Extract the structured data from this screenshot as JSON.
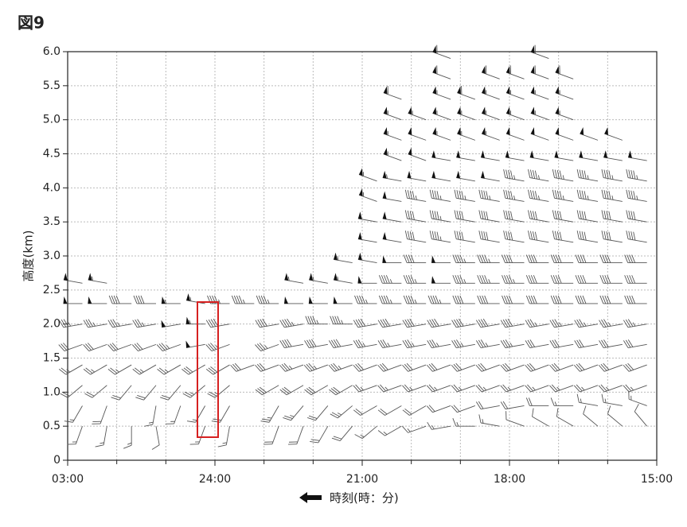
{
  "chart_data": {
    "type": "wind_barb",
    "title": "図9",
    "xlabel": "時刻(時：分)",
    "ylabel": "高度(km)",
    "xlim": [
      27,
      15
    ],
    "ylim": [
      0,
      6
    ],
    "xticks": [
      {
        "value": 27,
        "label": "03:00"
      },
      {
        "value": 24,
        "label": "24:00"
      },
      {
        "value": 21,
        "label": "21:00"
      },
      {
        "value": 18,
        "label": "18:00"
      },
      {
        "value": 15,
        "label": "15:00"
      }
    ],
    "xminorticks": [
      26,
      25,
      23,
      22,
      20,
      19,
      17,
      16
    ],
    "yticks": [
      0,
      0.5,
      {
        "value": 1,
        "label": "1.0"
      },
      1.5,
      {
        "value": 2,
        "label": "2.0"
      },
      2.5,
      {
        "value": 3,
        "label": "3.0"
      },
      3.5,
      {
        "value": 4,
        "label": "4.0"
      },
      4.5,
      {
        "value": 5,
        "label": "5.0"
      },
      5.5,
      {
        "value": 6,
        "label": "6.0"
      }
    ],
    "grid": true,
    "color": "#555555",
    "heights": [
      0.5,
      0.8,
      1.1,
      1.4,
      1.7,
      2.0,
      2.3,
      2.6,
      2.9,
      3.2,
      3.5,
      3.8,
      4.1,
      4.4,
      4.7,
      5.0,
      5.3,
      5.6,
      5.9
    ],
    "series": [
      {
        "x": 26.7,
        "speed": [
          15,
          15,
          20,
          25,
          30,
          35,
          50,
          55,
          null,
          null,
          null,
          null,
          null,
          null,
          null,
          null,
          null,
          null,
          null
        ],
        "direction": [
          200,
          210,
          230,
          240,
          250,
          260,
          270,
          280,
          null,
          null,
          null,
          null,
          null,
          null,
          null,
          null,
          null,
          null,
          null
        ]
      },
      {
        "x": 26.2,
        "speed": [
          15,
          20,
          20,
          25,
          30,
          35,
          50,
          55,
          null,
          null,
          null,
          null,
          null,
          null,
          null,
          null,
          null,
          null,
          null
        ],
        "direction": [
          190,
          200,
          230,
          240,
          250,
          260,
          270,
          280,
          null,
          null,
          null,
          null,
          null,
          null,
          null,
          null,
          null,
          null,
          null
        ]
      },
      {
        "x": 25.7,
        "speed": [
          15,
          null,
          20,
          25,
          30,
          35,
          40,
          null,
          null,
          null,
          null,
          null,
          null,
          null,
          null,
          null,
          null,
          null,
          null
        ],
        "direction": [
          180,
          null,
          220,
          240,
          250,
          260,
          270,
          null,
          null,
          null,
          null,
          null,
          null,
          null,
          null,
          null,
          null,
          null,
          null
        ]
      },
      {
        "x": 25.2,
        "speed": [
          10,
          15,
          20,
          25,
          30,
          35,
          40,
          null,
          null,
          null,
          null,
          null,
          null,
          null,
          null,
          null,
          null,
          null,
          null
        ],
        "direction": [
          170,
          190,
          220,
          240,
          250,
          260,
          270,
          null,
          null,
          null,
          null,
          null,
          null,
          null,
          null,
          null,
          null,
          null,
          null
        ]
      },
      {
        "x": 24.7,
        "speed": [
          null,
          15,
          20,
          25,
          35,
          50,
          55,
          null,
          null,
          null,
          null,
          null,
          null,
          null,
          null,
          null,
          null,
          null,
          null
        ],
        "direction": [
          null,
          200,
          220,
          240,
          250,
          260,
          270,
          null,
          null,
          null,
          null,
          null,
          null,
          null,
          null,
          null,
          null,
          null,
          null
        ]
      },
      {
        "x": 24.2,
        "speed": [
          15,
          15,
          25,
          30,
          50,
          55,
          55,
          null,
          null,
          null,
          null,
          null,
          null,
          null,
          null,
          null,
          null,
          null,
          null
        ],
        "direction": [
          200,
          210,
          230,
          240,
          260,
          270,
          280,
          null,
          null,
          null,
          null,
          null,
          null,
          null,
          null,
          null,
          null,
          null,
          null
        ]
      },
      {
        "x": 23.7,
        "speed": [
          15,
          20,
          25,
          30,
          35,
          40,
          45,
          null,
          null,
          null,
          null,
          null,
          null,
          null,
          null,
          null,
          null,
          null,
          null
        ],
        "direction": [
          190,
          210,
          230,
          240,
          250,
          260,
          270,
          null,
          null,
          null,
          null,
          null,
          null,
          null,
          null,
          null,
          null,
          null,
          null
        ]
      },
      {
        "x": 23.2,
        "speed": [
          null,
          null,
          null,
          30,
          null,
          null,
          45,
          null,
          null,
          null,
          null,
          null,
          null,
          null,
          null,
          null,
          null,
          null,
          null
        ],
        "direction": [
          null,
          null,
          null,
          250,
          null,
          null,
          270,
          null,
          null,
          null,
          null,
          null,
          null,
          null,
          null,
          null,
          null,
          null,
          null
        ]
      },
      {
        "x": 22.7,
        "speed": [
          20,
          25,
          30,
          30,
          35,
          40,
          45,
          null,
          null,
          null,
          null,
          null,
          null,
          null,
          null,
          null,
          null,
          null,
          null
        ],
        "direction": [
          200,
          210,
          240,
          250,
          250,
          260,
          270,
          null,
          null,
          null,
          null,
          null,
          null,
          null,
          null,
          null,
          null,
          null,
          null
        ]
      },
      {
        "x": 22.2,
        "speed": [
          20,
          25,
          30,
          35,
          40,
          45,
          50,
          55,
          null,
          null,
          null,
          null,
          null,
          null,
          null,
          null,
          null,
          null,
          null
        ],
        "direction": [
          200,
          220,
          240,
          250,
          260,
          260,
          270,
          280,
          null,
          null,
          null,
          null,
          null,
          null,
          null,
          null,
          null,
          null,
          null
        ]
      },
      {
        "x": 21.7,
        "speed": [
          20,
          20,
          30,
          35,
          40,
          45,
          50,
          55,
          null,
          null,
          null,
          null,
          null,
          null,
          null,
          null,
          null,
          null,
          null
        ],
        "direction": [
          210,
          220,
          240,
          250,
          260,
          270,
          270,
          280,
          null,
          null,
          null,
          null,
          null,
          null,
          null,
          null,
          null,
          null,
          null
        ]
      },
      {
        "x": 21.2,
        "speed": [
          20,
          25,
          30,
          35,
          40,
          45,
          50,
          55,
          55,
          null,
          null,
          null,
          null,
          null,
          null,
          null,
          null,
          null,
          null
        ],
        "direction": [
          220,
          230,
          240,
          250,
          260,
          270,
          270,
          280,
          280,
          null,
          null,
          null,
          null,
          null,
          null,
          null,
          null,
          null,
          null
        ]
      },
      {
        "x": 20.7,
        "speed": [
          15,
          20,
          25,
          30,
          35,
          40,
          45,
          50,
          50,
          50,
          50,
          55,
          55,
          null,
          null,
          null,
          null,
          null,
          null
        ],
        "direction": [
          230,
          240,
          250,
          250,
          260,
          260,
          270,
          270,
          280,
          280,
          280,
          290,
          290,
          null,
          null,
          null,
          null,
          null,
          null
        ]
      },
      {
        "x": 20.2,
        "speed": [
          15,
          20,
          25,
          30,
          35,
          40,
          45,
          45,
          50,
          50,
          50,
          50,
          55,
          55,
          55,
          55,
          60,
          null,
          null
        ],
        "direction": [
          240,
          240,
          250,
          250,
          260,
          260,
          270,
          270,
          270,
          280,
          280,
          280,
          280,
          290,
          290,
          290,
          290,
          null,
          null
        ]
      },
      {
        "x": 19.7,
        "speed": [
          15,
          20,
          25,
          30,
          35,
          40,
          45,
          45,
          40,
          40,
          40,
          45,
          50,
          50,
          50,
          55,
          null,
          null,
          null
        ],
        "direction": [
          250,
          240,
          250,
          250,
          260,
          260,
          270,
          270,
          270,
          280,
          280,
          280,
          280,
          290,
          290,
          290,
          null,
          null,
          null
        ]
      },
      {
        "x": 19.2,
        "speed": [
          15,
          20,
          25,
          30,
          35,
          40,
          45,
          50,
          50,
          45,
          45,
          45,
          50,
          50,
          55,
          55,
          55,
          60,
          60
        ],
        "direction": [
          260,
          250,
          250,
          250,
          260,
          260,
          270,
          270,
          270,
          280,
          280,
          280,
          280,
          280,
          290,
          290,
          290,
          290,
          290
        ]
      },
      {
        "x": 18.7,
        "speed": [
          15,
          20,
          25,
          30,
          35,
          40,
          40,
          45,
          45,
          40,
          40,
          45,
          50,
          50,
          55,
          55,
          60,
          null,
          null
        ],
        "direction": [
          270,
          250,
          250,
          250,
          260,
          260,
          270,
          270,
          270,
          280,
          280,
          280,
          280,
          280,
          290,
          290,
          290,
          null,
          null
        ]
      },
      {
        "x": 18.2,
        "speed": [
          15,
          20,
          25,
          30,
          35,
          40,
          40,
          45,
          45,
          40,
          40,
          45,
          50,
          50,
          55,
          55,
          55,
          60,
          null
        ],
        "direction": [
          280,
          260,
          250,
          250,
          260,
          260,
          270,
          270,
          270,
          280,
          280,
          280,
          280,
          280,
          290,
          290,
          290,
          290,
          null
        ]
      },
      {
        "x": 17.7,
        "speed": [
          10,
          20,
          25,
          30,
          35,
          40,
          40,
          45,
          40,
          40,
          40,
          45,
          45,
          50,
          50,
          55,
          55,
          60,
          null
        ],
        "direction": [
          290,
          260,
          250,
          250,
          260,
          260,
          270,
          270,
          270,
          280,
          280,
          280,
          280,
          280,
          290,
          290,
          290,
          290,
          null
        ]
      },
      {
        "x": 17.2,
        "speed": [
          10,
          20,
          25,
          30,
          30,
          35,
          40,
          40,
          40,
          40,
          40,
          45,
          45,
          50,
          50,
          55,
          55,
          60,
          60
        ],
        "direction": [
          300,
          270,
          250,
          250,
          260,
          260,
          270,
          270,
          270,
          280,
          280,
          280,
          280,
          280,
          290,
          290,
          290,
          290,
          290
        ]
      },
      {
        "x": 16.7,
        "speed": [
          10,
          15,
          25,
          30,
          30,
          35,
          40,
          40,
          40,
          40,
          40,
          45,
          45,
          50,
          50,
          55,
          55,
          60,
          null
        ],
        "direction": [
          300,
          270,
          250,
          250,
          260,
          260,
          270,
          270,
          270,
          280,
          280,
          280,
          280,
          280,
          290,
          290,
          290,
          290,
          null
        ]
      },
      {
        "x": 16.2,
        "speed": [
          10,
          15,
          25,
          30,
          30,
          35,
          40,
          40,
          40,
          40,
          40,
          45,
          45,
          50,
          50,
          null,
          null,
          null,
          null
        ],
        "direction": [
          310,
          280,
          250,
          250,
          260,
          260,
          270,
          270,
          270,
          280,
          280,
          280,
          280,
          280,
          290,
          null,
          null,
          null,
          null
        ]
      },
      {
        "x": 15.7,
        "speed": [
          10,
          15,
          25,
          30,
          30,
          35,
          40,
          40,
          40,
          40,
          40,
          45,
          45,
          50,
          50,
          null,
          null,
          null,
          null
        ],
        "direction": [
          310,
          280,
          250,
          250,
          260,
          260,
          270,
          270,
          270,
          280,
          280,
          280,
          280,
          280,
          290,
          null,
          null,
          null,
          null
        ]
      },
      {
        "x": 15.2,
        "speed": [
          10,
          15,
          25,
          30,
          30,
          35,
          40,
          40,
          40,
          40,
          40,
          45,
          45,
          50,
          null,
          null,
          null,
          null,
          null
        ],
        "direction": [
          320,
          290,
          250,
          250,
          260,
          260,
          270,
          270,
          270,
          280,
          280,
          280,
          280,
          280,
          null,
          null,
          null,
          null,
          null
        ]
      }
    ]
  }
}
